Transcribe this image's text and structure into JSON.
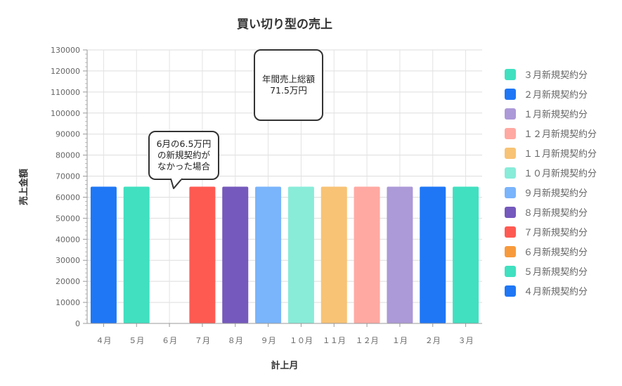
{
  "chart_data": {
    "type": "bar",
    "title": "買い切り型の売上",
    "xlabel": "計上月",
    "ylabel": "売上金額",
    "ylim": [
      0,
      130000
    ],
    "ytick_step": 10000,
    "categories": [
      "４月",
      "５月",
      "６月",
      "７月",
      "８月",
      "９月",
      "１０月",
      "１１月",
      "１２月",
      "１月",
      "２月",
      "３月"
    ],
    "series": [
      {
        "name": "４月新規契約分",
        "color": "#1F77F6",
        "values": [
          65000,
          0,
          0,
          0,
          0,
          0,
          0,
          0,
          0,
          0,
          0,
          0
        ]
      },
      {
        "name": "５月新規契約分",
        "color": "#40E0C0",
        "values": [
          0,
          65000,
          0,
          0,
          0,
          0,
          0,
          0,
          0,
          0,
          0,
          0
        ]
      },
      {
        "name": "６月新規契約分",
        "color": "#F79A3C",
        "values": [
          0,
          0,
          0,
          0,
          0,
          0,
          0,
          0,
          0,
          0,
          0,
          0
        ]
      },
      {
        "name": "７月新規契約分",
        "color": "#FF5A52",
        "values": [
          0,
          0,
          0,
          65000,
          0,
          0,
          0,
          0,
          0,
          0,
          0,
          0
        ]
      },
      {
        "name": "８月新規契約分",
        "color": "#7559BC",
        "values": [
          0,
          0,
          0,
          0,
          65000,
          0,
          0,
          0,
          0,
          0,
          0,
          0
        ]
      },
      {
        "name": "９月新規契約分",
        "color": "#7AB4FB",
        "values": [
          0,
          0,
          0,
          0,
          0,
          65000,
          0,
          0,
          0,
          0,
          0,
          0
        ]
      },
      {
        "name": "１０月新規契約分",
        "color": "#88ECD9",
        "values": [
          0,
          0,
          0,
          0,
          0,
          0,
          65000,
          0,
          0,
          0,
          0,
          0
        ]
      },
      {
        "name": "１１月新規契約分",
        "color": "#F8C375",
        "values": [
          0,
          0,
          0,
          0,
          0,
          0,
          0,
          65000,
          0,
          0,
          0,
          0
        ]
      },
      {
        "name": "１２月新規契約分",
        "color": "#FFA9A2",
        "values": [
          0,
          0,
          0,
          0,
          0,
          0,
          0,
          0,
          65000,
          0,
          0,
          0
        ]
      },
      {
        "name": "１月新規契約分",
        "color": "#AC99D7",
        "values": [
          0,
          0,
          0,
          0,
          0,
          0,
          0,
          0,
          0,
          65000,
          0,
          0
        ]
      },
      {
        "name": "２月新規契約分",
        "color": "#1F77F6",
        "values": [
          0,
          0,
          0,
          0,
          0,
          0,
          0,
          0,
          0,
          0,
          65000,
          0
        ]
      },
      {
        "name": "３月新規契約分",
        "color": "#40E0C0",
        "values": [
          0,
          0,
          0,
          0,
          0,
          0,
          0,
          0,
          0,
          0,
          0,
          65000
        ]
      }
    ],
    "legend_position": "right",
    "grid": true,
    "annotations": [
      {
        "text": "年間売上総額\n71.5万円"
      },
      {
        "text": "6月の6.5万円\nの新規契約が\nなかった場合"
      }
    ]
  }
}
